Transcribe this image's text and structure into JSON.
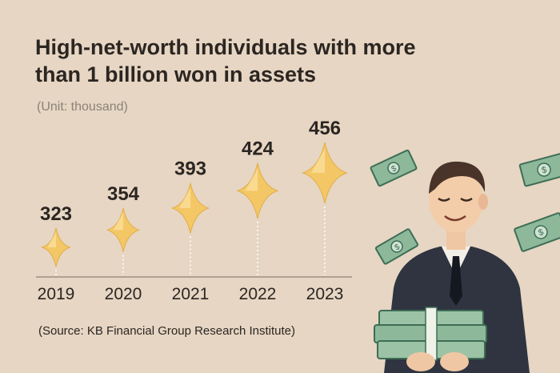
{
  "title": "High-net-worth individuals with more than 1 billion won in assets",
  "unit": "(Unit: thousand)",
  "source": "(Source: KB Financial Group Research Institute)",
  "colors": {
    "background": "#e6d6c3",
    "diamond": "#f4c766",
    "diamond_light": "#fbe3a3",
    "text": "#2c2622"
  },
  "chart_data": {
    "type": "scatter",
    "categories": [
      "2019",
      "2020",
      "2021",
      "2022",
      "2023"
    ],
    "values": [
      323,
      354,
      393,
      424,
      456
    ],
    "title": "High-net-worth individuals with more than 1 billion won in assets",
    "ylabel": "(Unit: thousand)",
    "ylim": [
      323,
      456
    ],
    "grid": false
  },
  "illustration": {
    "subject": "businessman holding money stacks with banknotes flying",
    "icons": [
      "banknote-icon",
      "money-stack-icon",
      "businessman-figure"
    ]
  }
}
